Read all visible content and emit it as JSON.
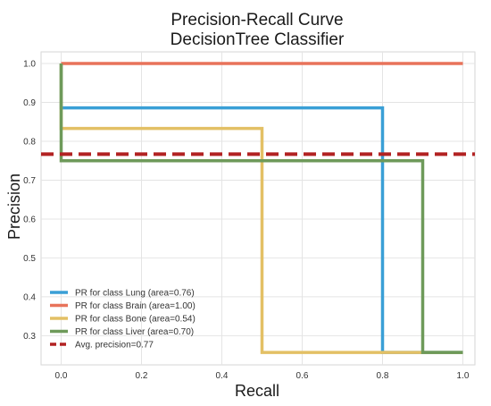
{
  "chart_data": {
    "type": "line",
    "title": "Precision-Recall Curve",
    "subtitle": "DecisionTree Classifier",
    "xlabel": "Recall",
    "ylabel": "Precision",
    "xlim": [
      -0.05,
      1.03
    ],
    "ylim": [
      0.225,
      1.03
    ],
    "x_ticks": [
      0.0,
      0.2,
      0.4,
      0.6,
      0.8,
      1.0
    ],
    "y_ticks": [
      0.3,
      0.4,
      0.5,
      0.6,
      0.7,
      0.8,
      0.9,
      1.0
    ],
    "x_tick_labels": [
      "0.0",
      "0.2",
      "0.4",
      "0.6",
      "0.8",
      "1.0"
    ],
    "y_tick_labels": [
      "0.3",
      "0.4",
      "0.5",
      "0.6",
      "0.7",
      "0.8",
      "0.9",
      "1.0"
    ],
    "grid": true,
    "legend_position": "lower-left",
    "background": "#ffffff",
    "grid_color": "#e4e4e4",
    "series": [
      {
        "name": "PR for class Lung (area=0.76)",
        "color": "#3a9fd6",
        "x": [
          0.0,
          0.0,
          0.8,
          0.8,
          1.0
        ],
        "y": [
          1.0,
          0.886,
          0.886,
          0.257,
          0.257
        ]
      },
      {
        "name": "PR for class Brain (area=1.00)",
        "color": "#e8735a",
        "x": [
          0.0,
          1.0
        ],
        "y": [
          1.0,
          1.0
        ]
      },
      {
        "name": "PR for class Bone (area=0.54)",
        "color": "#e3c065",
        "x": [
          0.0,
          0.0,
          0.5,
          0.5,
          1.0
        ],
        "y": [
          1.0,
          0.833,
          0.833,
          0.257,
          0.257
        ]
      },
      {
        "name": "PR for class Liver (area=0.70)",
        "color": "#6e9a5a",
        "x": [
          0.0,
          0.0,
          0.9,
          0.9,
          1.0
        ],
        "y": [
          1.0,
          0.75,
          0.75,
          0.257,
          0.257
        ]
      },
      {
        "name": "Avg. precision=0.77",
        "color": "#b22222",
        "dashed": true,
        "x": [
          -0.05,
          1.03
        ],
        "y": [
          0.767,
          0.767
        ]
      }
    ]
  }
}
